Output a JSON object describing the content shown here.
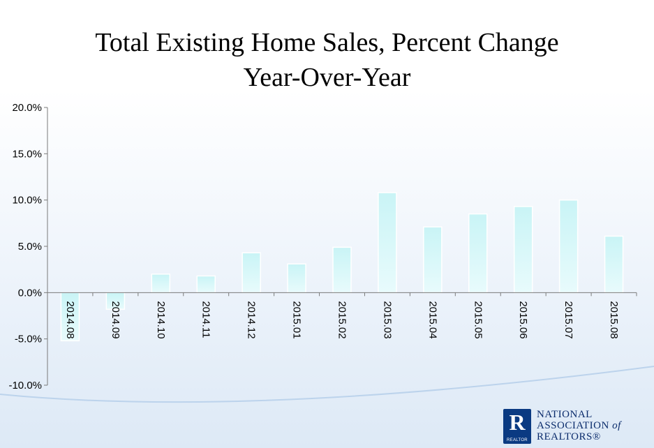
{
  "title_line1": "Total Existing Home Sales, Percent Change",
  "title_line2": "Year-Over-Year",
  "logo": {
    "mark_letter": "R",
    "mark_caption": "REALTOR",
    "line1": "NATIONAL",
    "line2a": "ASSOCIATION",
    "line2b": "of",
    "line3": "REALTORS®"
  },
  "colors": {
    "bar_top": "#c9f4f6",
    "bar_bottom": "#e8fbfc",
    "axis": "#7a7a7a",
    "brand": "#0a3a82"
  },
  "chart_data": {
    "type": "bar",
    "title": "Total Existing Home Sales, Percent Change Year-Over-Year",
    "categories": [
      "2014.08",
      "2014.09",
      "2014.10",
      "2014.11",
      "2014.12",
      "2015.01",
      "2015.02",
      "2015.03",
      "2015.04",
      "2015.05",
      "2015.06",
      "2015.07",
      "2015.08"
    ],
    "values": [
      -5.2,
      -1.8,
      2.0,
      1.8,
      4.3,
      3.1,
      4.9,
      10.8,
      7.1,
      8.5,
      9.3,
      10.0,
      6.1
    ],
    "ylim": [
      -10,
      20
    ],
    "yticks": [
      -10,
      -5,
      0,
      5,
      10,
      15,
      20
    ],
    "ytick_labels": [
      "-10.0%",
      "-5.0%",
      "0.0%",
      "5.0%",
      "10.0%",
      "15.0%",
      "20.0%"
    ],
    "xlabel": "",
    "ylabel": "",
    "grid": false
  }
}
